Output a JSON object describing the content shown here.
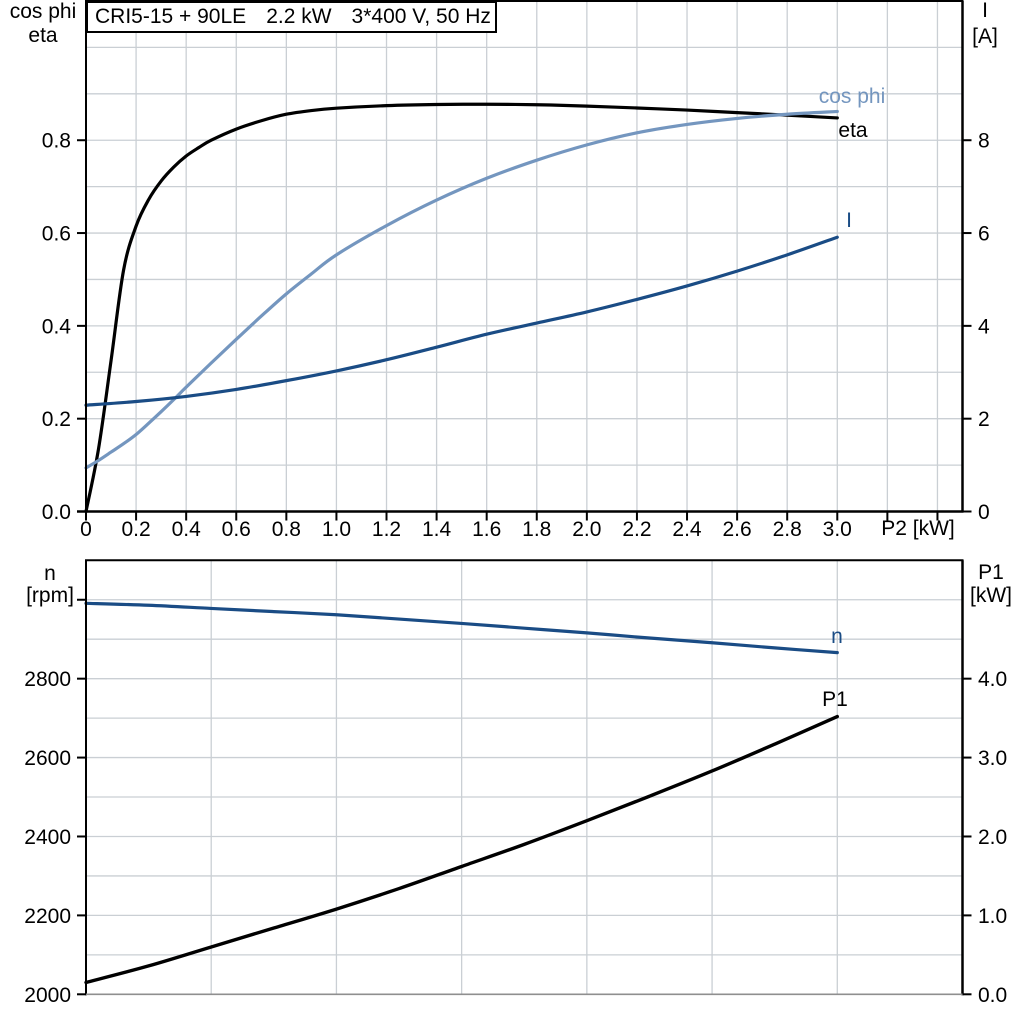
{
  "page": {
    "background": "#ffffff"
  },
  "title_box": {
    "model": "CRI5-15 + 90LE",
    "power": "2.2 kW",
    "voltage": "3*400 V, 50 Hz"
  },
  "colors": {
    "black": "#000000",
    "navy": "#1a4c85",
    "light_blue": "#7496bf",
    "grid": "#cacfd4",
    "axis_gray": "#8f8f8f"
  },
  "labels": {
    "top_left_axis_line1": "cos phi",
    "top_left_axis_line2": "eta",
    "top_right_axis_line1": "I",
    "top_right_axis_line2": "[A]",
    "x_axis_title": "P2 [kW]",
    "bottom_left_axis_line1": "n",
    "bottom_left_axis_line2": "[rpm]",
    "bottom_right_axis_line1": "P1",
    "bottom_right_axis_line2": "[kW]",
    "curve_cos_phi": "cos phi",
    "curve_eta": "eta",
    "curve_I": "I",
    "curve_n": "n",
    "curve_P1": "P1"
  },
  "chart_data": [
    {
      "type": "line",
      "plot": "top",
      "title": "CRI5-15 + 90LE   2.2 kW   3*400 V, 50 Hz",
      "x_axis": {
        "label": "P2 [kW]",
        "min": 0,
        "max": 3.5,
        "grid_step": 0.2,
        "ticks": [
          {
            "v": 0.0,
            "label": "0"
          },
          {
            "v": 0.2,
            "label": "0.2"
          },
          {
            "v": 0.4,
            "label": "0.4"
          },
          {
            "v": 0.6,
            "label": "0.6"
          },
          {
            "v": 0.8,
            "label": "0.8"
          },
          {
            "v": 1.0,
            "label": "1.0"
          },
          {
            "v": 1.2,
            "label": "1.2"
          },
          {
            "v": 1.4,
            "label": "1.4"
          },
          {
            "v": 1.6,
            "label": "1.6"
          },
          {
            "v": 1.8,
            "label": "1.8"
          },
          {
            "v": 2.0,
            "label": "2.0"
          },
          {
            "v": 2.2,
            "label": "2.2"
          },
          {
            "v": 2.4,
            "label": "2.4"
          },
          {
            "v": 2.6,
            "label": "2.6"
          },
          {
            "v": 2.8,
            "label": "2.8"
          },
          {
            "v": 3.0,
            "label": "3.0"
          },
          {
            "v": 3.2,
            "label": ""
          },
          {
            "v": 3.4,
            "label": ""
          }
        ]
      },
      "y_left": {
        "title_lines": [
          "cos phi",
          "eta"
        ],
        "min": 0,
        "max": 1.1,
        "grid_step": 0.1,
        "ticks": [
          {
            "v": 0.0,
            "label": "0.0"
          },
          {
            "v": 0.2,
            "label": "0.2"
          },
          {
            "v": 0.4,
            "label": "0.4"
          },
          {
            "v": 0.6,
            "label": "0.6"
          },
          {
            "v": 0.8,
            "label": "0.8"
          }
        ]
      },
      "y_right": {
        "title_lines": [
          "I",
          "[A]"
        ],
        "min": 0,
        "max": 11,
        "ticks": [
          {
            "v": 0,
            "label": "0"
          },
          {
            "v": 2,
            "label": "2"
          },
          {
            "v": 4,
            "label": "4"
          },
          {
            "v": 6,
            "label": "6"
          },
          {
            "v": 8,
            "label": "8"
          }
        ]
      },
      "series": [
        {
          "name": "eta",
          "axis": "left",
          "color_key": "black",
          "width": 3.2,
          "points": [
            [
              0,
              0
            ],
            [
              0.05,
              0.135
            ],
            [
              0.1,
              0.325
            ],
            [
              0.15,
              0.52
            ],
            [
              0.2,
              0.615
            ],
            [
              0.25,
              0.672
            ],
            [
              0.3,
              0.712
            ],
            [
              0.35,
              0.742
            ],
            [
              0.4,
              0.766
            ],
            [
              0.45,
              0.784
            ],
            [
              0.5,
              0.8
            ],
            [
              0.6,
              0.824
            ],
            [
              0.7,
              0.842
            ],
            [
              0.8,
              0.856
            ],
            [
              0.9,
              0.864
            ],
            [
              1.0,
              0.869
            ],
            [
              1.2,
              0.8745
            ],
            [
              1.4,
              0.877
            ],
            [
              1.6,
              0.8775
            ],
            [
              1.8,
              0.8765
            ],
            [
              2.0,
              0.8735
            ],
            [
              2.2,
              0.8695
            ],
            [
              2.4,
              0.865
            ],
            [
              2.6,
              0.8595
            ],
            [
              2.8,
              0.854
            ],
            [
              3.0,
              0.848
            ]
          ]
        },
        {
          "name": "cos phi",
          "axis": "left",
          "color_key": "light_blue",
          "width": 3.2,
          "points": [
            [
              0,
              0.094
            ],
            [
              0.05,
              0.11
            ],
            [
              0.1,
              0.128
            ],
            [
              0.15,
              0.146
            ],
            [
              0.2,
              0.166
            ],
            [
              0.25,
              0.19
            ],
            [
              0.3,
              0.215
            ],
            [
              0.35,
              0.241
            ],
            [
              0.4,
              0.268
            ],
            [
              0.5,
              0.32
            ],
            [
              0.6,
              0.371
            ],
            [
              0.7,
              0.421
            ],
            [
              0.8,
              0.469
            ],
            [
              0.9,
              0.512
            ],
            [
              1.0,
              0.553
            ],
            [
              1.2,
              0.616
            ],
            [
              1.4,
              0.671
            ],
            [
              1.6,
              0.718
            ],
            [
              1.8,
              0.757
            ],
            [
              2.0,
              0.79
            ],
            [
              2.2,
              0.816
            ],
            [
              2.4,
              0.834
            ],
            [
              2.6,
              0.847
            ],
            [
              2.8,
              0.856
            ],
            [
              3.0,
              0.862
            ]
          ]
        },
        {
          "name": "I",
          "axis": "right",
          "color_key": "navy",
          "width": 3.2,
          "points": [
            [
              0,
              2.29
            ],
            [
              0.2,
              2.37
            ],
            [
              0.4,
              2.48
            ],
            [
              0.6,
              2.63
            ],
            [
              0.8,
              2.82
            ],
            [
              1.0,
              3.03
            ],
            [
              1.2,
              3.27
            ],
            [
              1.4,
              3.54
            ],
            [
              1.6,
              3.82
            ],
            [
              1.8,
              4.06
            ],
            [
              2.0,
              4.3
            ],
            [
              2.2,
              4.57
            ],
            [
              2.4,
              4.86
            ],
            [
              2.6,
              5.18
            ],
            [
              2.8,
              5.53
            ],
            [
              3.0,
              5.91
            ]
          ]
        }
      ]
    },
    {
      "type": "line",
      "plot": "bottom",
      "x_axis": {
        "label": "",
        "min": 0,
        "max": 3.5,
        "grid_step": 0.5,
        "ticks": []
      },
      "y_left": {
        "title_lines": [
          "n",
          "[rpm]"
        ],
        "min": 2000,
        "max": 3100,
        "grid_step": 100,
        "ticks": [
          {
            "v": 2000,
            "label": "2000"
          },
          {
            "v": 2200,
            "label": "2200"
          },
          {
            "v": 2400,
            "label": "2400"
          },
          {
            "v": 2600,
            "label": "2600"
          },
          {
            "v": 2800,
            "label": "2800"
          },
          {
            "v": 3000,
            "label": ""
          }
        ]
      },
      "y_right": {
        "title_lines": [
          "P1",
          "[kW]"
        ],
        "min": 0,
        "max": 5.5,
        "ticks": [
          {
            "v": 0,
            "label": "0.0"
          },
          {
            "v": 1,
            "label": "1.0"
          },
          {
            "v": 2,
            "label": "2.0"
          },
          {
            "v": 3,
            "label": "3.0"
          },
          {
            "v": 4,
            "label": "4.0"
          }
        ]
      },
      "series": [
        {
          "name": "n",
          "axis": "left",
          "color_key": "navy",
          "width": 3.2,
          "points": [
            [
              0,
              2991
            ],
            [
              0.25,
              2986
            ],
            [
              0.5,
              2978
            ],
            [
              0.75,
              2970
            ],
            [
              1.0,
              2962
            ],
            [
              1.25,
              2951
            ],
            [
              1.5,
              2940
            ],
            [
              1.75,
              2928
            ],
            [
              2.0,
              2916
            ],
            [
              2.25,
              2903
            ],
            [
              2.5,
              2891
            ],
            [
              2.75,
              2878
            ],
            [
              3.0,
              2866
            ]
          ]
        },
        {
          "name": "P1",
          "axis": "right",
          "color_key": "black",
          "width": 3.4,
          "points": [
            [
              0,
              0.15
            ],
            [
              0.25,
              0.36
            ],
            [
              0.5,
              0.6
            ],
            [
              0.75,
              0.84
            ],
            [
              1.0,
              1.08
            ],
            [
              1.25,
              1.34
            ],
            [
              1.5,
              1.62
            ],
            [
              1.75,
              1.9
            ],
            [
              2.0,
              2.2
            ],
            [
              2.25,
              2.51
            ],
            [
              2.5,
              2.83
            ],
            [
              2.75,
              3.17
            ],
            [
              3.0,
              3.52
            ]
          ]
        }
      ]
    }
  ]
}
